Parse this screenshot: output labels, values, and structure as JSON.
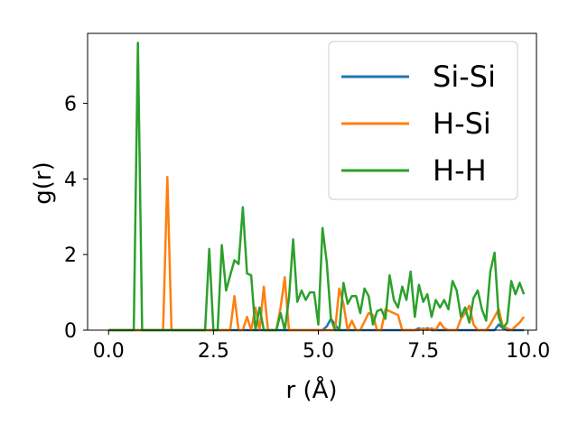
{
  "chart_data": {
    "type": "line",
    "title": "",
    "xlabel": "r (Å)",
    "ylabel": "g(r)",
    "xlim": [
      -0.5,
      10.2
    ],
    "ylim": [
      0,
      7.85
    ],
    "xticks": [
      0.0,
      2.5,
      5.0,
      7.5,
      10.0
    ],
    "xtick_labels": [
      "0.0",
      "2.5",
      "5.0",
      "7.5",
      "10.0"
    ],
    "yticks": [
      0,
      2,
      4,
      6
    ],
    "ytick_labels": [
      "0",
      "2",
      "4",
      "6"
    ],
    "grid": false,
    "legend_position": "top-right",
    "series": [
      {
        "name": "Si-Si",
        "color": "#1f77b4",
        "x": [
          0,
          5.1,
          5.2,
          5.3,
          5.4,
          5.5,
          7.3,
          7.4,
          7.5,
          7.6,
          7.7,
          9.2,
          9.3,
          9.4,
          9.5,
          9.9
        ],
        "y": [
          0,
          0,
          0.1,
          0.3,
          0.15,
          0,
          0,
          0.05,
          0,
          0.05,
          0,
          0,
          0.15,
          0.05,
          0,
          0
        ]
      },
      {
        "name": "H-Si",
        "color": "#ff7f0e",
        "x": [
          0,
          1.3,
          1.4,
          1.5,
          2.9,
          3.0,
          3.1,
          3.2,
          3.3,
          3.4,
          3.5,
          3.6,
          3.7,
          3.8,
          3.9,
          4.0,
          4.1,
          4.2,
          4.3,
          4.4,
          5.4,
          5.5,
          5.6,
          5.7,
          5.8,
          5.9,
          6.0,
          6.2,
          6.3,
          6.4,
          6.5,
          6.6,
          6.7,
          6.8,
          6.9,
          7.0,
          7.1,
          7.3,
          7.4,
          7.5,
          7.6,
          7.7,
          7.8,
          7.9,
          8.0,
          8.1,
          8.3,
          8.4,
          8.5,
          8.6,
          8.7,
          8.8,
          8.9,
          9.0,
          9.1,
          9.2,
          9.3,
          9.4,
          9.5,
          9.6,
          9.7,
          9.8,
          9.9
        ],
        "y": [
          0,
          0,
          4.05,
          0,
          0,
          0.9,
          0,
          0,
          0.35,
          0,
          0.6,
          0,
          1.15,
          0,
          0,
          0,
          0.6,
          1.4,
          0,
          0,
          0,
          1.1,
          0.7,
          0,
          0.25,
          0,
          0,
          0.45,
          0.4,
          0,
          0,
          0.55,
          0.5,
          0.45,
          0.4,
          0,
          0,
          0,
          0,
          0.05,
          0,
          0.05,
          0,
          0.2,
          0.05,
          0,
          0,
          0.3,
          0.45,
          0.65,
          0.15,
          0,
          0,
          0,
          0.15,
          0.35,
          0.55,
          0.1,
          0.05,
          0,
          0.1,
          0.2,
          0.35
        ]
      },
      {
        "name": "H-H",
        "color": "#2ca02c",
        "x": [
          0,
          0.6,
          0.7,
          0.8,
          2.3,
          2.4,
          2.5,
          2.6,
          2.7,
          2.8,
          2.9,
          3.0,
          3.1,
          3.2,
          3.3,
          3.4,
          3.5,
          3.6,
          3.7,
          3.8,
          3.9,
          4.0,
          4.1,
          4.2,
          4.3,
          4.4,
          4.5,
          4.6,
          4.7,
          4.8,
          4.9,
          5.0,
          5.1,
          5.2,
          5.3,
          5.4,
          5.5,
          5.6,
          5.7,
          5.8,
          5.9,
          6.0,
          6.1,
          6.2,
          6.3,
          6.4,
          6.5,
          6.6,
          6.7,
          6.8,
          6.9,
          7.0,
          7.1,
          7.2,
          7.3,
          7.4,
          7.5,
          7.6,
          7.7,
          7.8,
          7.9,
          8.0,
          8.1,
          8.2,
          8.3,
          8.4,
          8.5,
          8.6,
          8.7,
          8.8,
          8.9,
          9.0,
          9.1,
          9.2,
          9.3,
          9.4,
          9.5,
          9.6,
          9.7,
          9.8,
          9.9
        ],
        "y": [
          0,
          0,
          7.6,
          0,
          0,
          2.15,
          0,
          0,
          2.25,
          1.05,
          1.45,
          1.85,
          1.75,
          3.25,
          1.5,
          1.45,
          0,
          0.6,
          0,
          0,
          0,
          0,
          0.45,
          0,
          0.85,
          2.4,
          0.75,
          1.05,
          0.8,
          1.0,
          1.0,
          0.15,
          2.7,
          1.8,
          0.3,
          0,
          0,
          1.25,
          0.7,
          0.9,
          0.9,
          0.45,
          1.1,
          0.9,
          0.15,
          0.5,
          0.55,
          0.3,
          1.45,
          0.8,
          0.6,
          1.15,
          0.8,
          1.55,
          0.35,
          1.2,
          0.75,
          0.95,
          0.35,
          0.8,
          0.6,
          0.8,
          0.55,
          1.3,
          1.05,
          0.35,
          0.6,
          0.2,
          0.85,
          1.05,
          0.55,
          0.25,
          1.55,
          2.05,
          0.35,
          0.05,
          0.2,
          1.3,
          0.95,
          1.25,
          0.95
        ]
      }
    ]
  }
}
